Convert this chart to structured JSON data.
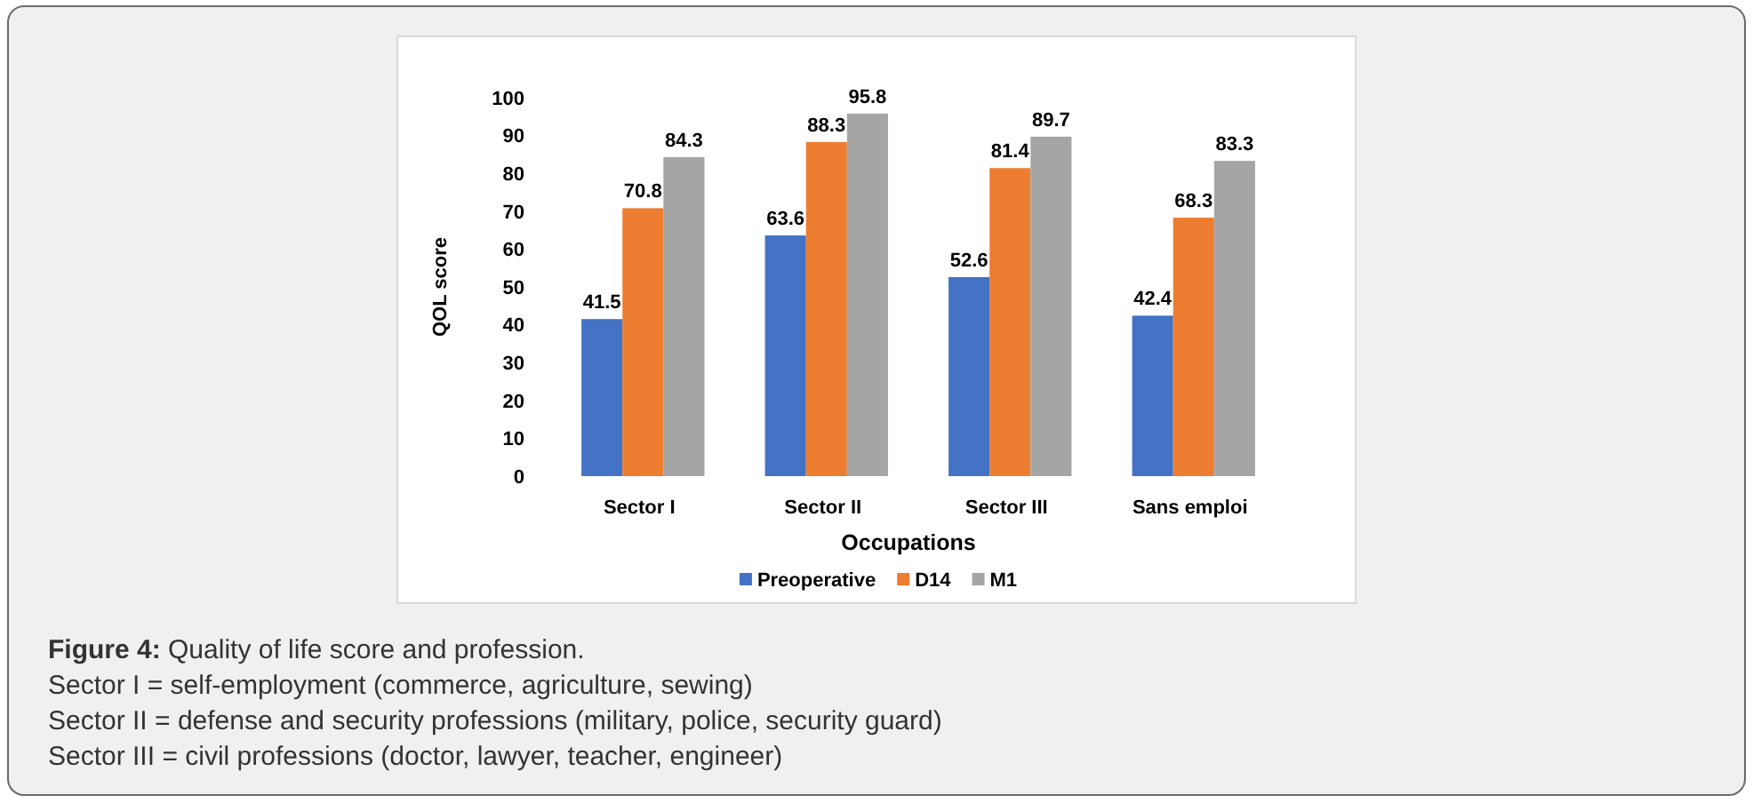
{
  "chart_data": {
    "type": "bar",
    "title": "Figure 4: Quality of life score and profession.",
    "annotations": [
      "Sector I = self-employment (commerce, agriculture, sewing)",
      "Sector II = defense and security professions (military, police, security guard)",
      "Sector III = civil professions (doctor, lawyer, teacher, engineer)"
    ],
    "xlabel": "Occupations",
    "ylabel": "QOL score",
    "categories": [
      "Sector I",
      "Sector II",
      "Sector III",
      "Sans emploi"
    ],
    "series": [
      {
        "name": "Preoperative",
        "color": "#4472c4",
        "values": [
          41.5,
          63.6,
          52.6,
          42.4
        ]
      },
      {
        "name": "D14",
        "color": "#ed7d31",
        "values": [
          70.8,
          88.3,
          81.4,
          68.3
        ]
      },
      {
        "name": "M1",
        "color": "#a5a5a5",
        "values": [
          84.3,
          95.8,
          89.7,
          83.3
        ]
      }
    ],
    "ylim": [
      0,
      100
    ],
    "yticks": [
      0,
      10,
      20,
      30,
      40,
      50,
      60,
      70,
      80,
      90,
      100
    ],
    "data_labels": true,
    "legend": "bottom"
  }
}
